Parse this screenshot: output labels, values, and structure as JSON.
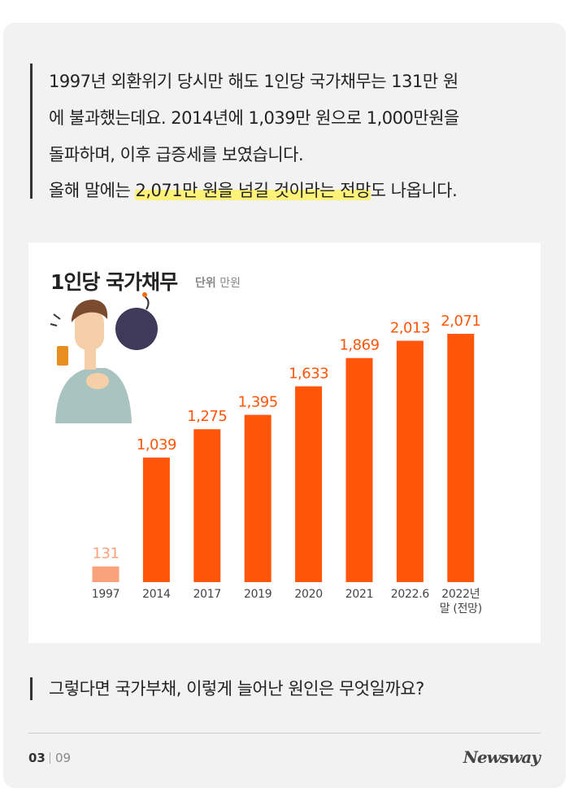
{
  "intro": {
    "lines": [
      "1997년 외환위기 당시만 해도 1인당 국가채무는 131만 원",
      "에 불과했는데요. 2014년에 1,039만 원으로 1,000만원을",
      "돌파하며, 이후 급증세를 보였습니다."
    ],
    "last_line": {
      "before": "올해 말에는 ",
      "highlight": "2,071만 원을 넘길 것이라는 전망",
      "after": "도 나옵니다."
    }
  },
  "chart_data": {
    "type": "bar",
    "title": "1인당 국가채무",
    "unit_label": "단위",
    "unit": "만원",
    "categories": [
      "1997",
      "2014",
      "2017",
      "2019",
      "2020",
      "2021",
      "2022.6",
      "2022년 말 (전망)"
    ],
    "values": [
      131,
      1039,
      1275,
      1395,
      1633,
      1869,
      2013,
      2071
    ],
    "value_labels": [
      "131",
      "1,039",
      "1,275",
      "1,395",
      "1,633",
      "1,869",
      "2,013",
      "2,071"
    ],
    "colors": [
      "#f8a27c",
      "#ff560a",
      "#ff560a",
      "#ff560a",
      "#ff560a",
      "#ff560a",
      "#ff560a",
      "#ff560a"
    ]
  },
  "question": "그렇다면 국가부채, 이렇게 늘어난 원인은 무엇일까요?",
  "page": {
    "current": "03",
    "total": "09"
  },
  "brand": "Newsway"
}
